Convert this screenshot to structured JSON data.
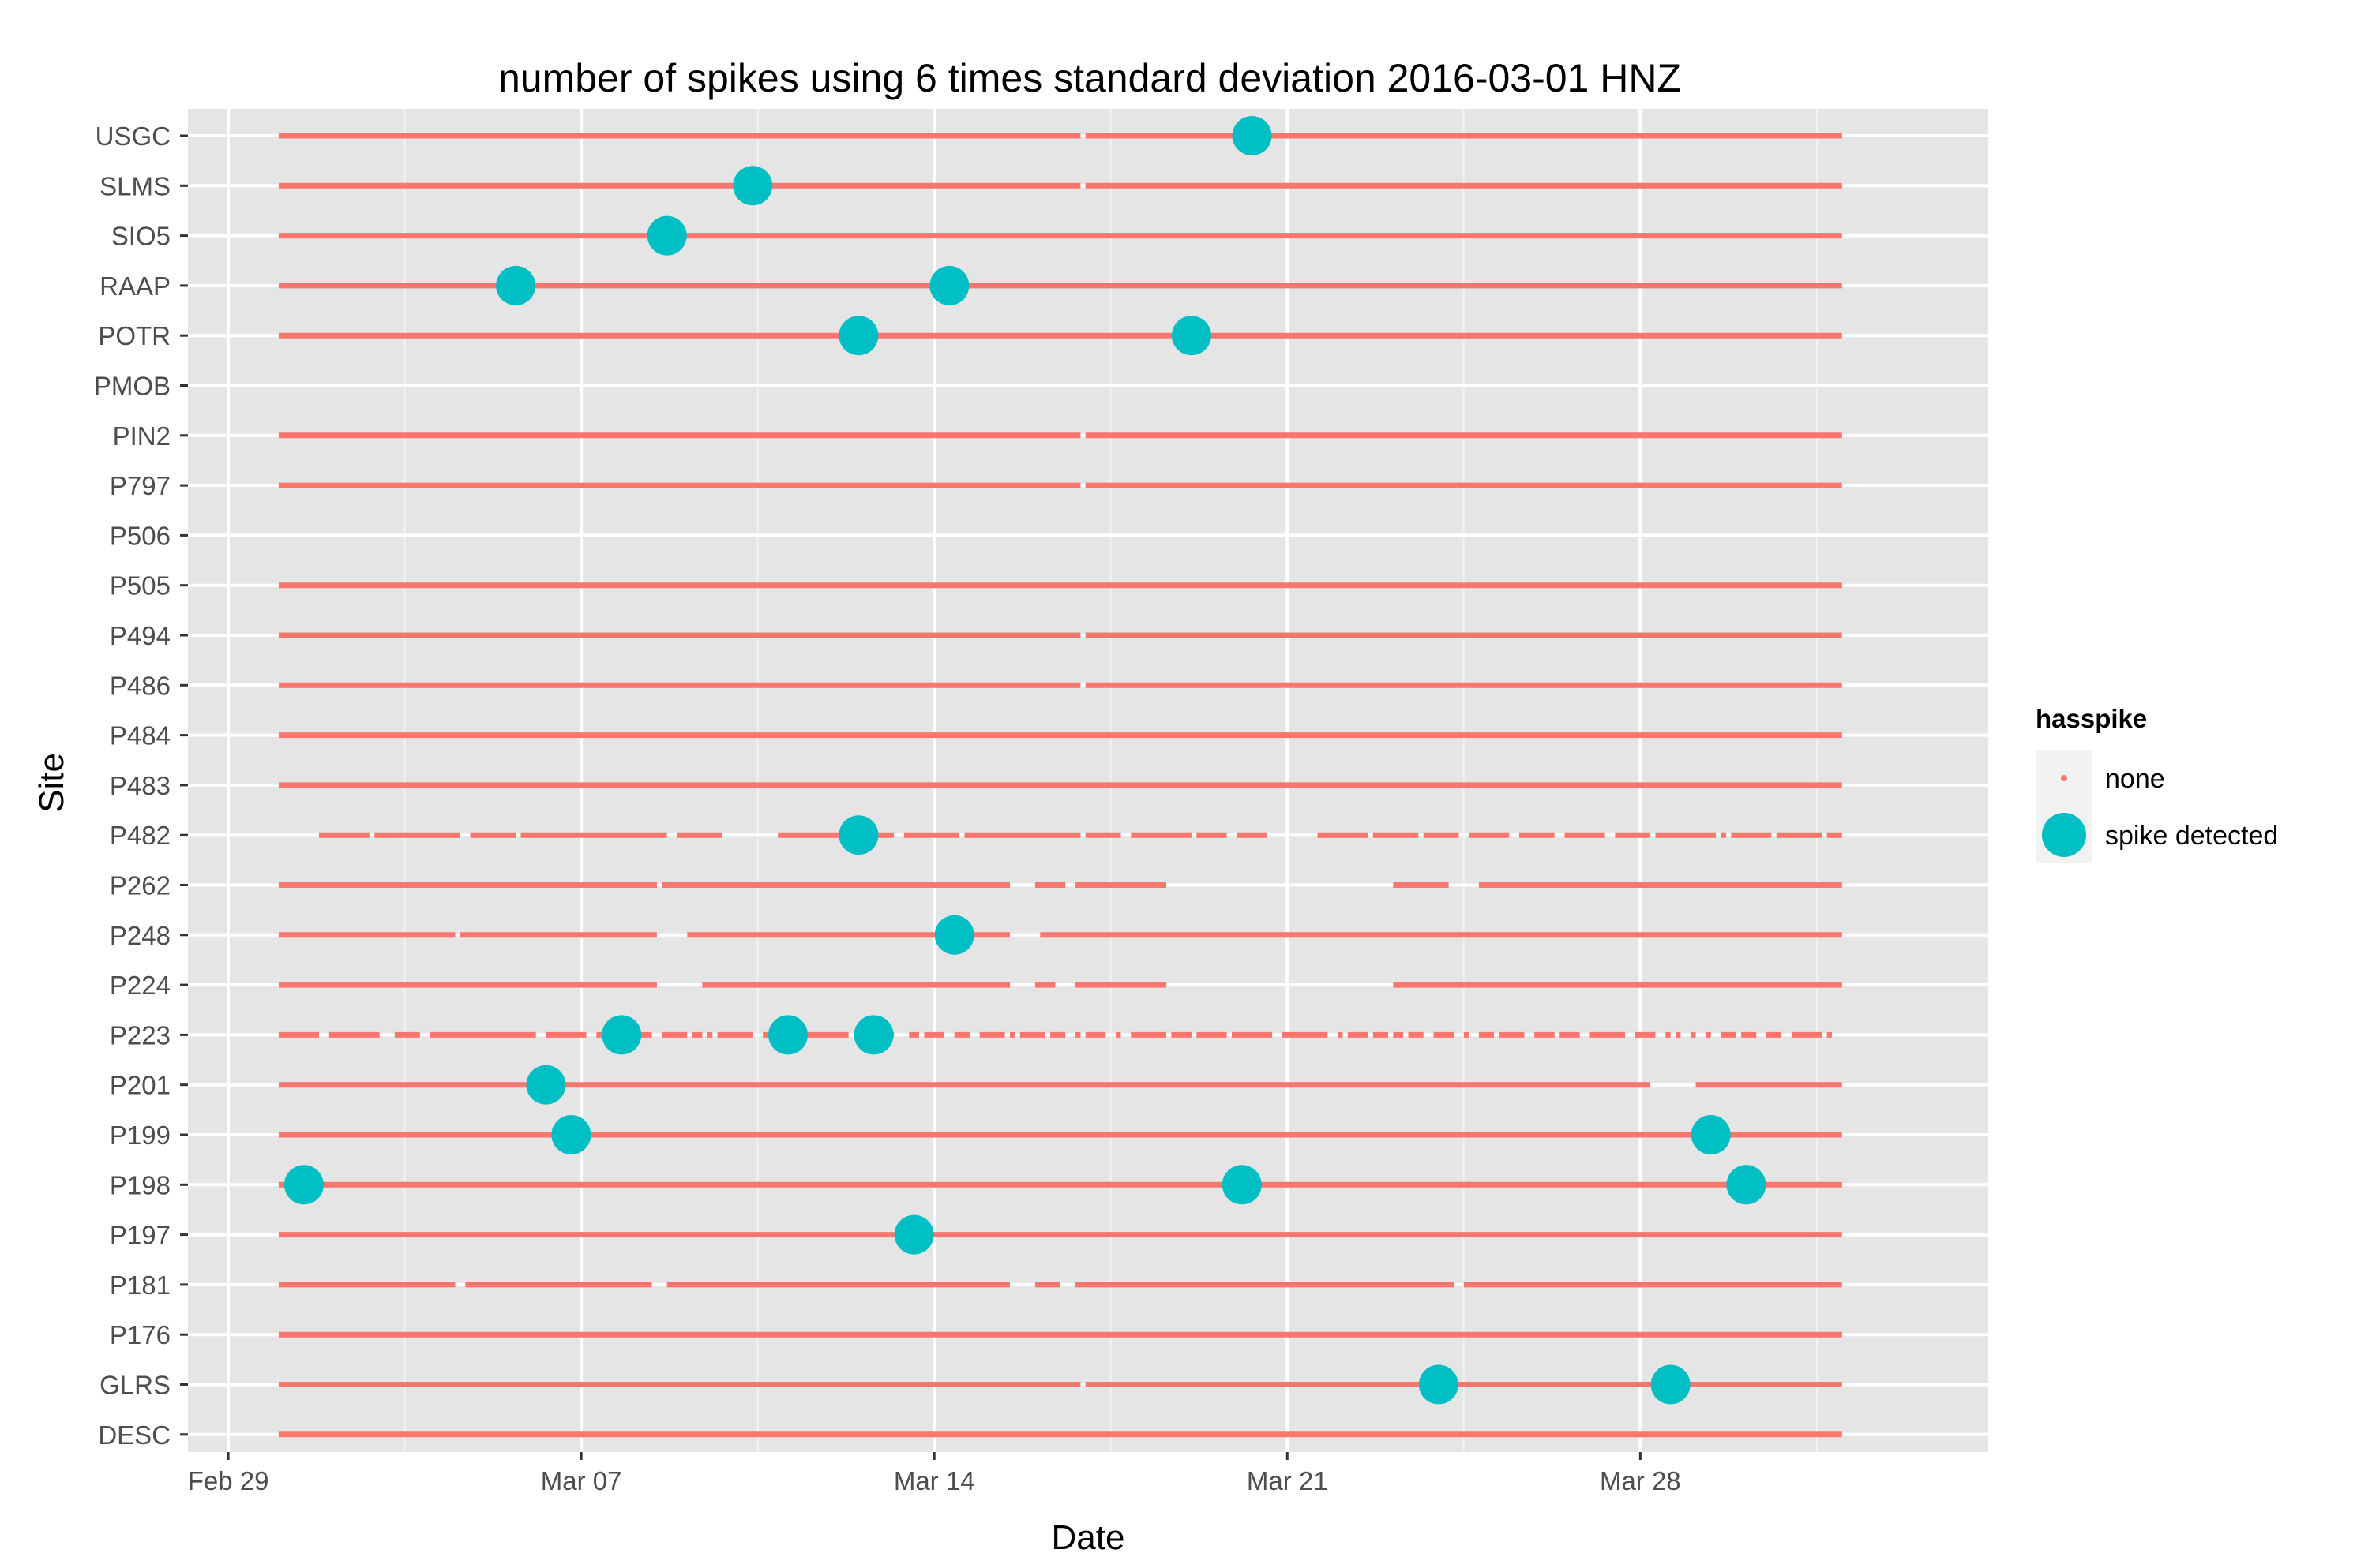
{
  "chart_data": {
    "type": "scatter",
    "title": "number of spikes using  6 times standard deviation 2016-03-01 HNZ",
    "xlabel": "Date",
    "ylabel": "Site",
    "x_unit": "days since Feb 29",
    "xlim": [
      -0.8,
      34.9
    ],
    "x_ticks": [
      {
        "value": 0,
        "label": "Feb 29"
      },
      {
        "value": 7,
        "label": "Mar 07"
      },
      {
        "value": 14,
        "label": "Mar 14"
      },
      {
        "value": 21,
        "label": "Mar 21"
      },
      {
        "value": 28,
        "label": "Mar 28"
      }
    ],
    "sites": [
      "USGC",
      "SLMS",
      "SIO5",
      "RAAP",
      "POTR",
      "PMOB",
      "PIN2",
      "P797",
      "P506",
      "P505",
      "P494",
      "P486",
      "P484",
      "P483",
      "P482",
      "P262",
      "P248",
      "P224",
      "P223",
      "P201",
      "P199",
      "P198",
      "P197",
      "P181",
      "P176",
      "GLRS",
      "DESC"
    ],
    "legend": {
      "title": "hasspike",
      "placement": "right",
      "entries": [
        {
          "key": "none",
          "label": "none",
          "color": "#F8766D"
        },
        {
          "key": "spike",
          "label": "spike detected",
          "color": "#00BFC4"
        }
      ]
    },
    "series": [
      {
        "name": "none",
        "color": "#F8766D",
        "segments": {
          "USGC": [
            [
              1.0,
              16.9
            ],
            [
              17.0,
              32.0
            ]
          ],
          "SLMS": [
            [
              1.0,
              16.9
            ],
            [
              17.0,
              32.0
            ]
          ],
          "SIO5": [
            [
              1.0,
              32.0
            ]
          ],
          "RAAP": [
            [
              1.0,
              32.0
            ]
          ],
          "POTR": [
            [
              1.0,
              32.0
            ]
          ],
          "PMOB": [],
          "PIN2": [
            [
              1.0,
              16.9
            ],
            [
              17.0,
              32.0
            ]
          ],
          "P797": [
            [
              1.0,
              16.9
            ],
            [
              17.0,
              32.0
            ]
          ],
          "P506": [],
          "P505": [
            [
              1.0,
              32.0
            ]
          ],
          "P494": [
            [
              1.0,
              16.9
            ],
            [
              17.0,
              32.0
            ]
          ],
          "P486": [
            [
              1.0,
              16.9
            ],
            [
              17.0,
              32.0
            ]
          ],
          "P484": [
            [
              1.0,
              32.0
            ]
          ],
          "P483": [
            [
              1.0,
              32.0
            ]
          ],
          "P482": [
            [
              1.8,
              2.8
            ],
            [
              2.9,
              4.6
            ],
            [
              4.8,
              5.7
            ],
            [
              5.8,
              8.7
            ],
            [
              8.9,
              9.8
            ],
            [
              10.9,
              13.2
            ],
            [
              13.4,
              14.5
            ],
            [
              14.6,
              16.9
            ],
            [
              17.0,
              17.7
            ],
            [
              17.9,
              19.1
            ],
            [
              19.2,
              19.8
            ],
            [
              20.0,
              20.6
            ],
            [
              21.6,
              22.6
            ],
            [
              22.7,
              23.6
            ],
            [
              23.7,
              24.4
            ],
            [
              24.6,
              25.4
            ],
            [
              25.6,
              26.3
            ],
            [
              26.5,
              27.3
            ],
            [
              27.5,
              28.2
            ],
            [
              28.3,
              29.5
            ],
            [
              29.6,
              29.7
            ],
            [
              29.8,
              30.6
            ],
            [
              30.7,
              31.6
            ],
            [
              31.7,
              32.0
            ]
          ],
          "P262": [
            [
              1.0,
              8.5
            ],
            [
              8.6,
              15.5
            ],
            [
              16.0,
              16.6
            ],
            [
              16.8,
              18.6
            ],
            [
              23.1,
              24.2
            ],
            [
              24.8,
              32.0
            ]
          ],
          "P248": [
            [
              1.0,
              4.5
            ],
            [
              4.6,
              8.5
            ],
            [
              9.1,
              15.5
            ],
            [
              16.1,
              32.0
            ]
          ],
          "P224": [
            [
              1.0,
              8.5
            ],
            [
              9.4,
              15.5
            ],
            [
              16.0,
              16.4
            ],
            [
              16.8,
              18.6
            ],
            [
              23.1,
              32.0
            ]
          ],
          "P223": [
            [
              1.0,
              1.8
            ],
            [
              2.0,
              3.0
            ],
            [
              3.3,
              3.8
            ],
            [
              4.0,
              6.1
            ],
            [
              6.3,
              7.1
            ],
            [
              7.3,
              7.9
            ],
            [
              8.0,
              8.4
            ],
            [
              8.6,
              9.1
            ],
            [
              9.2,
              9.4
            ],
            [
              9.5,
              9.6
            ],
            [
              9.7,
              10.4
            ],
            [
              10.6,
              10.9
            ],
            [
              11.1,
              11.2
            ],
            [
              11.4,
              12.3
            ],
            [
              12.4,
              13.2
            ],
            [
              13.5,
              13.7
            ],
            [
              13.8,
              14.2
            ],
            [
              14.4,
              14.7
            ],
            [
              14.9,
              15.4
            ],
            [
              15.5,
              15.6
            ],
            [
              15.7,
              16.2
            ],
            [
              16.3,
              16.6
            ],
            [
              16.8,
              16.9
            ],
            [
              17.0,
              17.4
            ],
            [
              17.6,
              17.7
            ],
            [
              17.9,
              18.6
            ],
            [
              18.7,
              19.1
            ],
            [
              19.2,
              19.8
            ],
            [
              19.9,
              20.7
            ],
            [
              20.9,
              21.8
            ],
            [
              22.0,
              22.1
            ],
            [
              22.2,
              22.6
            ],
            [
              22.7,
              23.0
            ],
            [
              23.1,
              23.3
            ],
            [
              23.4,
              23.7
            ],
            [
              23.9,
              24.3
            ],
            [
              24.5,
              24.6
            ],
            [
              24.8,
              25.1
            ],
            [
              25.2,
              25.7
            ],
            [
              25.9,
              26.3
            ],
            [
              26.4,
              26.8
            ],
            [
              27.0,
              27.7
            ],
            [
              27.9,
              28.3
            ],
            [
              28.5,
              28.6
            ],
            [
              28.7,
              28.8
            ],
            [
              29.0,
              29.1
            ],
            [
              29.3,
              29.4
            ],
            [
              29.6,
              29.9
            ],
            [
              30.0,
              30.3
            ],
            [
              30.5,
              30.8
            ],
            [
              31.0,
              31.6
            ],
            [
              31.7,
              31.8
            ]
          ],
          "P201": [
            [
              1.0,
              28.2
            ],
            [
              29.1,
              32.0
            ]
          ],
          "P199": [
            [
              1.0,
              32.0
            ]
          ],
          "P198": [
            [
              1.0,
              32.0
            ]
          ],
          "P197": [
            [
              1.0,
              32.0
            ]
          ],
          "P181": [
            [
              1.0,
              4.5
            ],
            [
              4.7,
              8.4
            ],
            [
              8.7,
              15.5
            ],
            [
              16.0,
              16.5
            ],
            [
              16.8,
              24.3
            ],
            [
              24.5,
              32.0
            ]
          ],
          "P176": [
            [
              1.0,
              32.0
            ]
          ],
          "GLRS": [
            [
              1.0,
              16.9
            ],
            [
              17.0,
              32.0
            ]
          ],
          "DESC": [
            [
              1.0,
              32.0
            ]
          ]
        }
      },
      {
        "name": "spike detected",
        "color": "#00BFC4",
        "points": [
          {
            "site": "USGC",
            "x": 20.3
          },
          {
            "site": "SLMS",
            "x": 10.4
          },
          {
            "site": "SIO5",
            "x": 8.7
          },
          {
            "site": "RAAP",
            "x": 5.7
          },
          {
            "site": "RAAP",
            "x": 14.3
          },
          {
            "site": "POTR",
            "x": 12.5
          },
          {
            "site": "POTR",
            "x": 19.1
          },
          {
            "site": "P482",
            "x": 12.5
          },
          {
            "site": "P248",
            "x": 14.4
          },
          {
            "site": "P223",
            "x": 7.8
          },
          {
            "site": "P223",
            "x": 11.1
          },
          {
            "site": "P223",
            "x": 12.8
          },
          {
            "site": "P201",
            "x": 6.3
          },
          {
            "site": "P199",
            "x": 6.8
          },
          {
            "site": "P199",
            "x": 29.4
          },
          {
            "site": "P198",
            "x": 1.5
          },
          {
            "site": "P198",
            "x": 20.1
          },
          {
            "site": "P198",
            "x": 30.1
          },
          {
            "site": "P197",
            "x": 13.6
          },
          {
            "site": "GLRS",
            "x": 24.0
          },
          {
            "site": "GLRS",
            "x": 28.6
          }
        ]
      }
    ]
  }
}
